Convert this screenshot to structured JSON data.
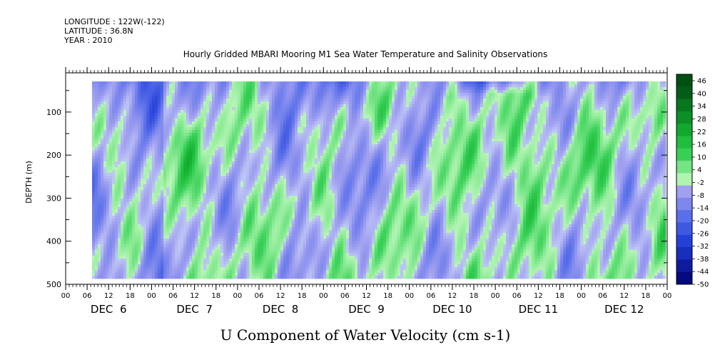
{
  "header": {
    "longitude": "LONGITUDE : 122W(-122)",
    "latitude": "LATITUDE : 36.8N",
    "year": "YEAR : 2010"
  },
  "chart_data": {
    "type": "heatmap",
    "title": "Hourly Gridded MBARI Mooring M1 Sea Water Temperature and Salinity Observations",
    "xlabel": "U Component of Water Velocity (cm s-1)",
    "ylabel": "DEPTH (m)",
    "y_range": [
      20,
      500
    ],
    "y_ticks": [
      "100",
      "200",
      "300",
      "400",
      "500"
    ],
    "y_tick_values": [
      100,
      200,
      300,
      400,
      500
    ],
    "x_hour_labels": [
      "00",
      "06",
      "12",
      "18",
      "00",
      "06",
      "12",
      "18",
      "00",
      "06",
      "12",
      "18",
      "00",
      "06",
      "12",
      "18",
      "00",
      "06",
      "12",
      "18",
      "00",
      "06",
      "12",
      "18",
      "00",
      "06",
      "12",
      "18",
      "00"
    ],
    "x_day_labels": [
      "DEC  6",
      "DEC  7",
      "DEC  8",
      "DEC  9",
      "DEC 10",
      "DEC 11",
      "DEC 12"
    ],
    "colorbar_labels": [
      "46",
      "40",
      "34",
      "28",
      "22",
      "16",
      "10",
      "4",
      "-2",
      "-8",
      "-14",
      "-20",
      "-26",
      "-32",
      "-38",
      "-44",
      "-50"
    ],
    "colorbar_values": [
      46,
      40,
      34,
      28,
      22,
      16,
      10,
      4,
      -2,
      -8,
      -14,
      -20,
      -26,
      -32,
      -38,
      -44,
      -50
    ],
    "colormap": {
      "strong_negative": "#000070",
      "negative": "#2244dd",
      "near_zero_neg": "#a8a8f0",
      "near_zero_pos": "#a8f0a8",
      "positive": "#22cc44",
      "strong_positive": "#005500"
    },
    "typical_range": [
      -30,
      25
    ]
  }
}
